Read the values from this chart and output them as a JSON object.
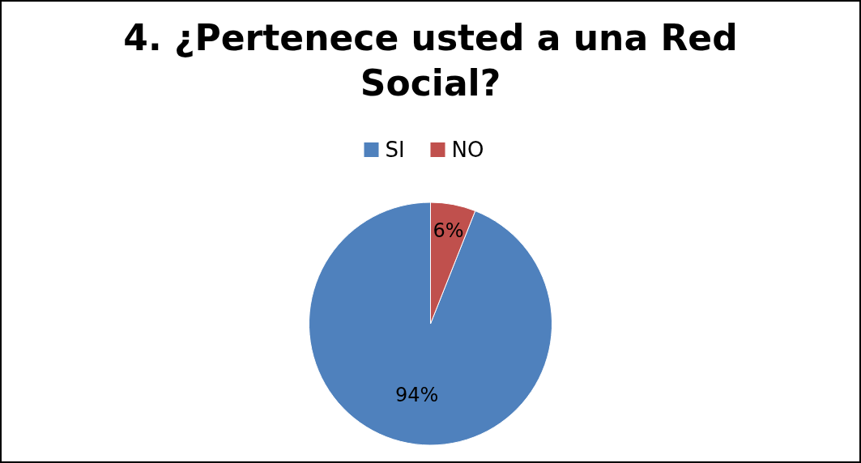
{
  "chart_data": {
    "type": "pie",
    "title": "4. ¿Pertenece usted a una Red Social?",
    "categories": [
      "SI",
      "NO"
    ],
    "values": [
      94,
      6
    ],
    "colors": [
      "#4f81bd",
      "#c0504d"
    ],
    "value_labels": [
      "94%",
      "6%"
    ],
    "legend": "top"
  }
}
